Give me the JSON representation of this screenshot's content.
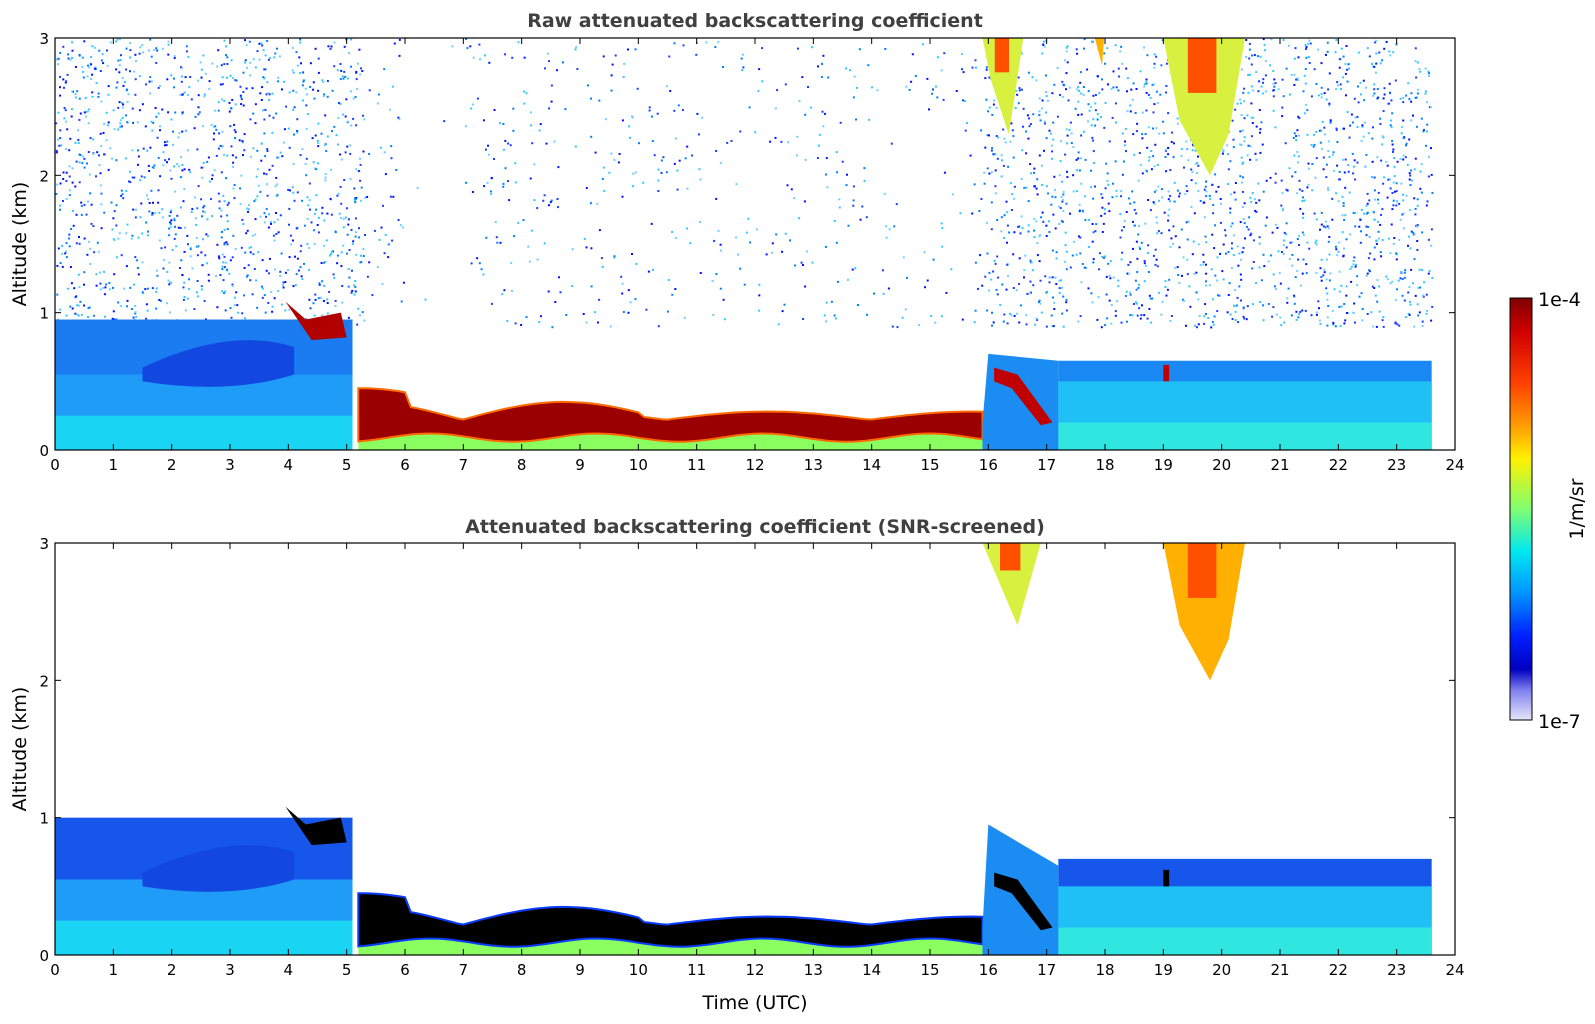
{
  "chart_data": [
    {
      "type": "heatmap",
      "title": "Raw attenuated backscattering coefficient",
      "xlabel": "",
      "ylabel": "Altitude (km)",
      "xlim": [
        0,
        24
      ],
      "ylim": [
        0,
        3
      ],
      "x_ticks": [
        "0",
        "1",
        "2",
        "3",
        "4",
        "5",
        "6",
        "7",
        "8",
        "9",
        "10",
        "11",
        "12",
        "13",
        "14",
        "15",
        "16",
        "17",
        "18",
        "19",
        "20",
        "21",
        "22",
        "23",
        "24"
      ],
      "y_ticks": [
        "0",
        "1",
        "2",
        "3"
      ],
      "data_end_time": 23.6,
      "screened": false,
      "layer_features": [
        {
          "name": "boundary layer",
          "start": 0,
          "end": 5.1,
          "top_km": 0.95
        },
        {
          "name": "fog / low cloud layer",
          "start": 5.2,
          "end": 15.9,
          "base_km": 0.1,
          "top_km": 0.4
        },
        {
          "name": "afternoon boundary layer",
          "start": 17.2,
          "end": 23.6,
          "top_km": 0.65
        },
        {
          "name": "high cloud",
          "start": 15.9,
          "end": 16.6,
          "base_km": 2.3,
          "top_km": 3.0
        },
        {
          "name": "high cloud",
          "start": 17.6,
          "end": 18.1,
          "base_km": 2.8,
          "top_km": 3.0
        },
        {
          "name": "high cloud",
          "start": 19.0,
          "end": 20.4,
          "base_km": 2.0,
          "top_km": 3.0
        }
      ]
    },
    {
      "type": "heatmap",
      "title": "Attenuated backscattering coefficient (SNR-screened)",
      "xlabel": "Time (UTC)",
      "ylabel": "Altitude (km)",
      "xlim": [
        0,
        24
      ],
      "ylim": [
        0,
        3
      ],
      "x_ticks": [
        "0",
        "1",
        "2",
        "3",
        "4",
        "5",
        "6",
        "7",
        "8",
        "9",
        "10",
        "11",
        "12",
        "13",
        "14",
        "15",
        "16",
        "17",
        "18",
        "19",
        "20",
        "21",
        "22",
        "23",
        "24"
      ],
      "y_ticks": [
        "0",
        "1",
        "2",
        "3"
      ],
      "data_end_time": 23.6,
      "screened": true,
      "layer_features": [
        {
          "name": "boundary layer",
          "start": 0,
          "end": 5.1,
          "top_km": 1.0
        },
        {
          "name": "fog / low cloud layer",
          "start": 5.2,
          "end": 15.9,
          "base_km": 0.1,
          "top_km": 0.4
        },
        {
          "name": "afternoon boundary layer",
          "start": 16.0,
          "end": 23.6,
          "top_km": 0.7
        },
        {
          "name": "high cloud",
          "start": 15.9,
          "end": 16.9,
          "base_km": 2.4,
          "top_km": 3.0
        },
        {
          "name": "high cloud",
          "start": 19.0,
          "end": 20.4,
          "base_km": 2.0,
          "top_km": 3.0
        }
      ]
    }
  ],
  "colorbar": {
    "max_label": "1e-4",
    "min_label": "1e-7",
    "unit_label": "1/m/sr",
    "scale": "log",
    "colors": [
      "#7f0000",
      "#d50000",
      "#ff3b00",
      "#ff9a00",
      "#fff000",
      "#b0ff3f",
      "#4dffae",
      "#00e4f8",
      "#0094ff",
      "#0030ff",
      "#0000c8",
      "#a0a0f4",
      "#e6e6fa"
    ]
  }
}
